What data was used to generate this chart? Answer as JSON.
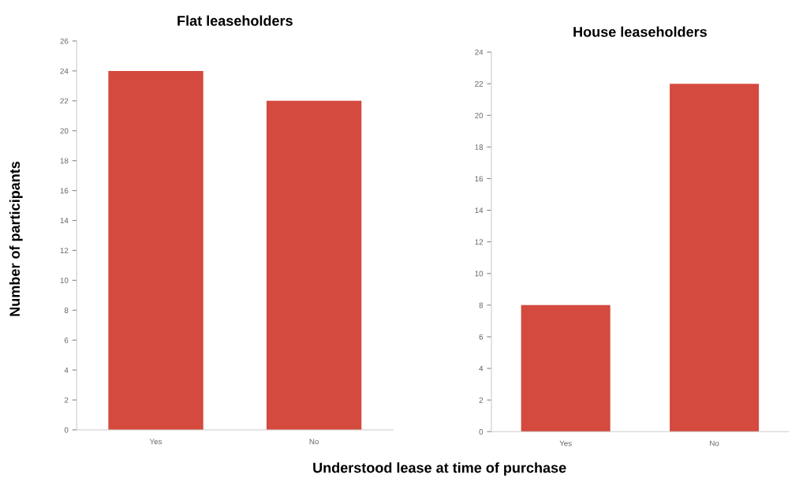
{
  "chart_data": [
    {
      "type": "bar",
      "title": "Flat leaseholders",
      "ylabel": "Number of participants",
      "xlabel": "Understood lease at time of purchase",
      "categories": [
        "Yes",
        "No"
      ],
      "values": [
        24,
        22
      ],
      "color": "#d44a3e",
      "ylim": [
        0,
        26
      ],
      "yticks": [
        0,
        2,
        4,
        6,
        8,
        10,
        12,
        14,
        16,
        18,
        20,
        22,
        24,
        26
      ],
      "grid": false,
      "legend": false
    },
    {
      "type": "bar",
      "title": "House leaseholders",
      "categories": [
        "Yes",
        "No"
      ],
      "values": [
        8,
        22
      ],
      "color": "#d44a3e",
      "ylim": [
        0,
        24
      ],
      "yticks": [
        0,
        2,
        4,
        6,
        8,
        10,
        12,
        14,
        16,
        18,
        20,
        22,
        24
      ],
      "grid": false,
      "legend": false
    }
  ]
}
